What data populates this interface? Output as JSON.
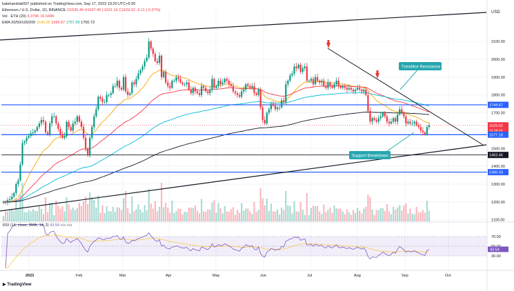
{
  "header": {
    "title_line": "katehandrak007 published on TradingView.com, Sep 17, 2023 19:20 UTC+5:30",
    "symbol": "Ethereum / U.S. Dollar, 1D, BINANCE",
    "ohlc": "O1635.46  H1637.45  L1621.16  C1629.52  -6.11 (-0.37%)",
    "vol_label": "Vol · ETH (20)",
    "vol_values": "4.379K  16.549K",
    "ema_label": "EMA 20/50/100/200",
    "ema_values": [
      "1646.96",
      "1696.97",
      "1757.55",
      "1750.73"
    ],
    "currency": "USD"
  },
  "rsi_label": "RSI (14, close, SMA, 14, 2)",
  "rsi_value": "43.54",
  "rsi_extra": "n/a  n/a",
  "watermark": "TradingView",
  "annotations": {
    "trendline": "Trendline Resistance",
    "support": "Support Breakdown"
  },
  "colors": {
    "up": "#089981",
    "down": "#f23645",
    "hline": "#2962ff",
    "ema20": "#f7a600",
    "ema50": "#f23645",
    "ema100": "#00bcd4",
    "ema200": "#131722",
    "rsi": "#7e57c2"
  },
  "chart_data": {
    "type": "candlestick",
    "x_ticks": [
      "2023",
      "Feb",
      "Mar",
      "Apr",
      "May",
      "Jun",
      "Jul",
      "Aug",
      "Sep",
      "Oct"
    ],
    "y_ticks": [
      1100,
      1200,
      1300,
      1400,
      1500,
      1600,
      1700,
      1800,
      1900,
      2000,
      2100
    ],
    "y_tick_labels": [
      "1100.00",
      "1200.00",
      "1300.00",
      "1400.00",
      "1500.00",
      "1600.00",
      "1700.00",
      "1800.00",
      "1900.00",
      "2000.00",
      "2100.00"
    ],
    "ylim": [
      1060,
      2180
    ],
    "price_levels": [
      {
        "value": 1744.67,
        "label": "1744.67",
        "style": "blue"
      },
      {
        "value": 1629.52,
        "label": "1629.52",
        "style": "red"
      },
      {
        "value": 1577.18,
        "label": "1577.18",
        "style": "blue"
      },
      {
        "value": 1463.46,
        "label": "1463.46",
        "style": "black"
      },
      {
        "value": 1366.93,
        "label": "1366.93",
        "style": "blue"
      }
    ],
    "countdown": "10:39:29",
    "close_series": [
      1200,
      1195,
      1210,
      1215,
      1230,
      1250,
      1300,
      1320,
      1410,
      1530,
      1540,
      1560,
      1570,
      1585,
      1590,
      1600,
      1620,
      1640,
      1660,
      1650,
      1590,
      1580,
      1640,
      1680,
      1680,
      1640,
      1610,
      1580,
      1560,
      1570,
      1650,
      1620,
      1600,
      1640,
      1650,
      1680,
      1650,
      1620,
      1560,
      1500,
      1460,
      1560,
      1620,
      1680,
      1720,
      1790,
      1780,
      1760,
      1760,
      1800,
      1800,
      1810,
      1850,
      1850,
      1880,
      1840,
      1830,
      1900,
      1820,
      1800,
      1810,
      1870,
      1860,
      1890,
      1920,
      1940,
      1960,
      1990,
      2010,
      2100,
      2060,
      2030,
      1990,
      1980,
      2020,
      1900,
      1930,
      1870,
      1850,
      1840,
      1880,
      1880,
      1900,
      1890,
      1870,
      1860,
      1860,
      1870,
      1830,
      1810,
      1840,
      1820,
      1810,
      1800,
      1850,
      1840,
      1820,
      1810,
      1830,
      1890,
      1840,
      1850,
      1880,
      1860,
      1870,
      1890,
      1880,
      1860,
      1850,
      1820,
      1810,
      1800,
      1790,
      1820,
      1830,
      1860,
      1850,
      1840,
      1850,
      1810,
      1800,
      1830,
      1730,
      1660,
      1640,
      1700,
      1720,
      1750,
      1740,
      1720,
      1730,
      1730,
      1770,
      1760,
      1860,
      1880,
      1910,
      1920,
      1960,
      1950,
      1970,
      1930,
      1950,
      1960,
      1880,
      1880,
      1890,
      1860,
      1900,
      1880,
      1870,
      1880,
      1850,
      1840,
      1870,
      1850,
      1840,
      1860,
      1880,
      1850,
      1840,
      1850,
      1840,
      1830,
      1840,
      1830,
      1820,
      1830,
      1840,
      1830,
      1820,
      1830,
      1800,
      1710,
      1650,
      1670,
      1660,
      1650,
      1670,
      1680,
      1700,
      1680,
      1650,
      1640,
      1650,
      1670,
      1650,
      1690,
      1720,
      1700,
      1680,
      1640,
      1650,
      1640,
      1640,
      1650,
      1630,
      1620,
      1600,
      1590,
      1580,
      1620,
      1630
    ],
    "rsi": {
      "levels": [
        70,
        50,
        30
      ],
      "value": 43.54
    }
  }
}
